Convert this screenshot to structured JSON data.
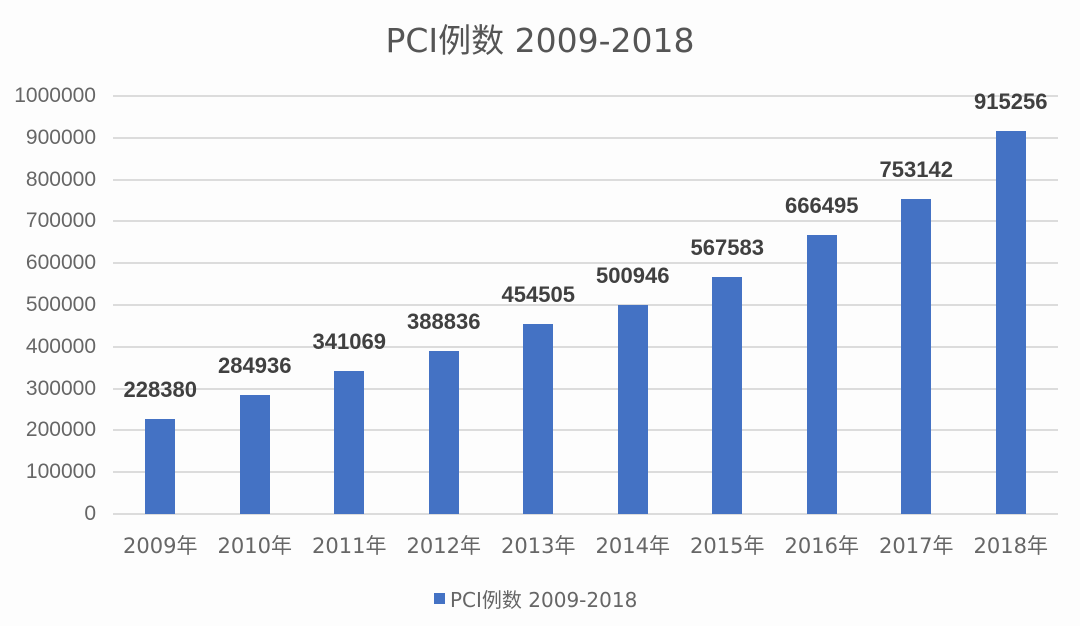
{
  "chart_data": {
    "type": "bar",
    "title": "PCI例数 2009-2018",
    "xlabel": "",
    "ylabel": "",
    "ylim": [
      0,
      1000000
    ],
    "yticks": [
      "0",
      "100000",
      "200000",
      "300000",
      "400000",
      "500000",
      "600000",
      "700000",
      "800000",
      "900000",
      "1000000"
    ],
    "categories": [
      "2009年",
      "2010年",
      "2011年",
      "2012年",
      "2013年",
      "2014年",
      "2015年",
      "2016年",
      "2017年",
      "2018年"
    ],
    "series": [
      {
        "name": "PCI例数 2009-2018",
        "color": "#4472c4",
        "values": [
          228380,
          284936,
          341069,
          388836,
          454505,
          500946,
          567583,
          666495,
          753142,
          915256
        ]
      }
    ],
    "value_labels": [
      "228380",
      "284936",
      "341069",
      "388836",
      "454505",
      "500946",
      "567583",
      "666495",
      "753142",
      "915256"
    ],
    "grid": true,
    "legend_position": "bottom"
  }
}
